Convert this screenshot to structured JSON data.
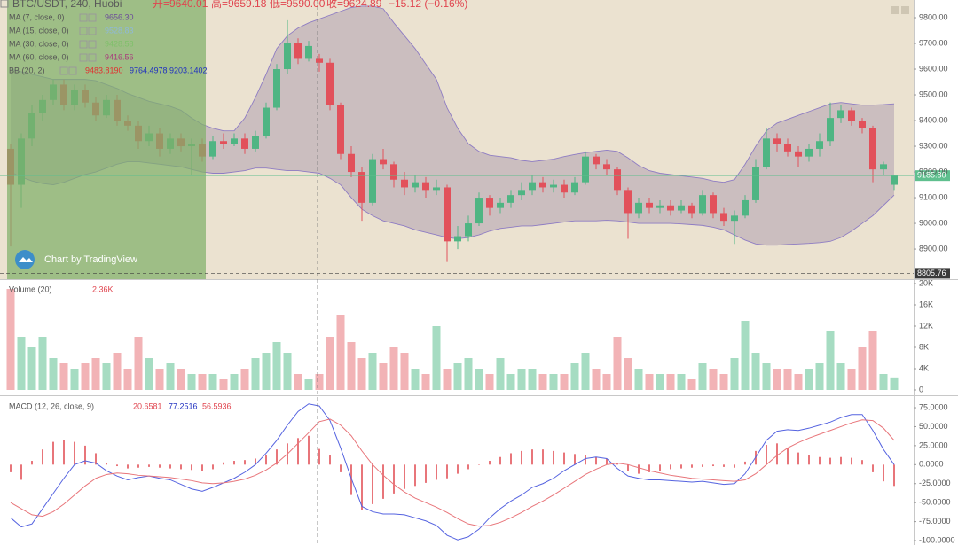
{
  "chart_data": [
    {
      "type": "candlestick",
      "title": "BTC/USDT, 240, Huobi",
      "ohlc_readout": [
        "开=9640.01",
        "高=9659.18",
        "低=9590.00",
        "收=9624.89",
        "−15.12 (−0.16%)"
      ],
      "readout_color": "#e0454f",
      "indicators": [
        {
          "name": "MA (7, close, 0)",
          "values": [
            "9656.30"
          ],
          "colors": [
            "#6b4a9a"
          ]
        },
        {
          "name": "MA (15, close, 0)",
          "values": [
            "9528.83"
          ],
          "colors": [
            "#8fb8d8"
          ]
        },
        {
          "name": "MA (30, close, 0)",
          "values": [
            "9428.58"
          ],
          "colors": [
            "#7fc06a"
          ]
        },
        {
          "name": "MA (60, close, 0)",
          "values": [
            "9416.56"
          ],
          "colors": [
            "#a83c7c"
          ]
        },
        {
          "name": "BB (20, 2)",
          "values": [
            "9483.8190",
            "9764.4978",
            "9203.1402"
          ],
          "colors": [
            "#e03030",
            "#2030c0",
            "#2030c0"
          ]
        }
      ],
      "watermark": "Chart by TradingView",
      "up_color": "#4fb583",
      "down_color": "#e2515b",
      "ohlc": [
        [
          9290,
          9310,
          8910,
          9150
        ],
        [
          9150,
          9350,
          9060,
          9330
        ],
        [
          9330,
          9460,
          9300,
          9430
        ],
        [
          9430,
          9500,
          9400,
          9480
        ],
        [
          9480,
          9560,
          9460,
          9540
        ],
        [
          9540,
          9560,
          9440,
          9460
        ],
        [
          9460,
          9540,
          9440,
          9520
        ],
        [
          9520,
          9540,
          9450,
          9470
        ],
        [
          9470,
          9490,
          9400,
          9420
        ],
        [
          9420,
          9500,
          9410,
          9480
        ],
        [
          9480,
          9500,
          9380,
          9400
        ],
        [
          9400,
          9420,
          9360,
          9380
        ],
        [
          9380,
          9400,
          9290,
          9320
        ],
        [
          9320,
          9380,
          9300,
          9350
        ],
        [
          9350,
          9370,
          9260,
          9290
        ],
        [
          9290,
          9350,
          9270,
          9330
        ],
        [
          9330,
          9350,
          9280,
          9300
        ],
        [
          9300,
          9330,
          9190,
          9310
        ],
        [
          9310,
          9330,
          9240,
          9260
        ],
        [
          9260,
          9340,
          9250,
          9320
        ],
        [
          9320,
          9350,
          9290,
          9310
        ],
        [
          9310,
          9350,
          9300,
          9330
        ],
        [
          9330,
          9350,
          9270,
          9290
        ],
        [
          9290,
          9360,
          9280,
          9340
        ],
        [
          9340,
          9470,
          9330,
          9450
        ],
        [
          9450,
          9620,
          9440,
          9600
        ],
        [
          9600,
          9790,
          9580,
          9700
        ],
        [
          9700,
          9720,
          9620,
          9640
        ],
        [
          9640,
          9710,
          9630,
          9690
        ],
        [
          9640.01,
          9659.18,
          9590.0,
          9624.89
        ],
        [
          9625,
          9640,
          9440,
          9460
        ],
        [
          9460,
          9470,
          9250,
          9270
        ],
        [
          9270,
          9300,
          9180,
          9200
        ],
        [
          9200,
          9220,
          9010,
          9080
        ],
        [
          9080,
          9270,
          9070,
          9250
        ],
        [
          9250,
          9290,
          9210,
          9230
        ],
        [
          9230,
          9240,
          9140,
          9170
        ],
        [
          9170,
          9200,
          9110,
          9140
        ],
        [
          9140,
          9190,
          9120,
          9160
        ],
        [
          9160,
          9180,
          9100,
          9130
        ],
        [
          9130,
          9170,
          9110,
          9140
        ],
        [
          9140,
          9150,
          8850,
          8930
        ],
        [
          8930,
          8990,
          8900,
          8950
        ],
        [
          8950,
          9030,
          8930,
          9000
        ],
        [
          9000,
          9120,
          8990,
          9100
        ],
        [
          9100,
          9110,
          9030,
          9060
        ],
        [
          9060,
          9100,
          9040,
          9080
        ],
        [
          9080,
          9130,
          9060,
          9110
        ],
        [
          9110,
          9160,
          9090,
          9130
        ],
        [
          9130,
          9190,
          9110,
          9160
        ],
        [
          9160,
          9180,
          9120,
          9140
        ],
        [
          9140,
          9170,
          9120,
          9150
        ],
        [
          9150,
          9170,
          9100,
          9120
        ],
        [
          9120,
          9180,
          9110,
          9160
        ],
        [
          9160,
          9280,
          9150,
          9260
        ],
        [
          9260,
          9270,
          9210,
          9230
        ],
        [
          9230,
          9250,
          9190,
          9210
        ],
        [
          9210,
          9220,
          9110,
          9130
        ],
        [
          9130,
          9140,
          8940,
          9040
        ],
        [
          9040,
          9100,
          9020,
          9080
        ],
        [
          9080,
          9100,
          9040,
          9060
        ],
        [
          9060,
          9090,
          9040,
          9070
        ],
        [
          9070,
          9090,
          9030,
          9050
        ],
        [
          9050,
          9090,
          9040,
          9070
        ],
        [
          9070,
          9080,
          9020,
          9040
        ],
        [
          9040,
          9130,
          9030,
          9110
        ],
        [
          9110,
          9120,
          9020,
          9040
        ],
        [
          9040,
          9060,
          8990,
          9010
        ],
        [
          9010,
          9050,
          8920,
          9030
        ],
        [
          9030,
          9110,
          9020,
          9090
        ],
        [
          9090,
          9250,
          9080,
          9220
        ],
        [
          9220,
          9370,
          9210,
          9330
        ],
        [
          9330,
          9350,
          9280,
          9310
        ],
        [
          9310,
          9330,
          9260,
          9280
        ],
        [
          9280,
          9300,
          9220,
          9260
        ],
        [
          9260,
          9310,
          9240,
          9290
        ],
        [
          9290,
          9350,
          9260,
          9320
        ],
        [
          9320,
          9470,
          9300,
          9410
        ],
        [
          9410,
          9460,
          9390,
          9440
        ],
        [
          9440,
          9450,
          9380,
          9400
        ],
        [
          9400,
          9410,
          9350,
          9370
        ],
        [
          9370,
          9380,
          9160,
          9210
        ],
        [
          9210,
          9240,
          9190,
          9230
        ],
        [
          9150,
          9190,
          9130,
          9185.8
        ]
      ],
      "bb": {
        "color": "#8e7cc3",
        "fill": "#9b8aa6",
        "upper": [
          9600,
          9590,
          9580,
          9570,
          9560,
          9560,
          9560,
          9560,
          9555,
          9540,
          9525,
          9505,
          9490,
          9475,
          9465,
          9455,
          9440,
          9410,
          9385,
          9370,
          9360,
          9360,
          9410,
          9490,
          9580,
          9680,
          9730,
          9760,
          9780,
          9795,
          9810,
          9825,
          9840,
          9845,
          9845,
          9835,
          9780,
          9730,
          9680,
          9620,
          9560,
          9450,
          9370,
          9310,
          9280,
          9265,
          9260,
          9255,
          9245,
          9240,
          9245,
          9250,
          9260,
          9268,
          9275,
          9280,
          9285,
          9280,
          9255,
          9225,
          9205,
          9195,
          9190,
          9185,
          9180,
          9175,
          9165,
          9160,
          9170,
          9230,
          9300,
          9360,
          9390,
          9405,
          9420,
          9435,
          9450,
          9465,
          9470,
          9465,
          9460,
          9460,
          9462,
          9465
        ],
        "lower": [
          9200,
          9180,
          9165,
          9155,
          9150,
          9160,
          9175,
          9190,
          9200,
          9215,
          9230,
          9240,
          9240,
          9235,
          9230,
          9225,
          9220,
          9210,
          9200,
          9195,
          9195,
          9200,
          9205,
          9215,
          9215,
          9210,
          9205,
          9205,
          9200,
          9195,
          9175,
          9150,
          9100,
          9055,
          9030,
          9010,
          9000,
          8990,
          8975,
          8965,
          8955,
          8945,
          8940,
          8945,
          8955,
          8970,
          8980,
          8985,
          8990,
          8990,
          8995,
          9000,
          9005,
          9010,
          9010,
          9010,
          9012,
          9010,
          9005,
          9000,
          9000,
          9000,
          9000,
          8998,
          8995,
          8992,
          8985,
          8975,
          8955,
          8935,
          8920,
          8915,
          8915,
          8918,
          8920,
          8922,
          8925,
          8930,
          8945,
          8970,
          9000,
          9030,
          9070,
          9110
        ]
      },
      "price_markers": [
        {
          "value": 9185.8,
          "label": "9185.80",
          "color": "#5fbf8e",
          "line_style": "solid"
        },
        {
          "value": 8805.76,
          "label": "8805.76",
          "color": "#3a3a3a",
          "line_style": "dashed"
        }
      ],
      "ylim": [
        8783,
        9869
      ],
      "yticks": [
        {
          "value": 9800,
          "label": "9800.00"
        },
        {
          "value": 9700,
          "label": "9700.00"
        },
        {
          "value": 9600,
          "label": "9600.00"
        },
        {
          "value": 9500,
          "label": "9500.00"
        },
        {
          "value": 9400,
          "label": "9400.00"
        },
        {
          "value": 9300,
          "label": "9300.00"
        },
        {
          "value": 9200,
          "label": "9200.00"
        },
        {
          "value": 9100,
          "label": "9100.00"
        },
        {
          "value": 9000,
          "label": "9000.00"
        },
        {
          "value": 8900,
          "label": "8900.00"
        }
      ]
    },
    {
      "type": "volume",
      "title": "Volume (20)",
      "value_label": "2.36K",
      "value_color": "#e0454f",
      "up_color": "#a6dcc2",
      "down_color": "#f2b3b6",
      "values": [
        19000,
        10000,
        8000,
        10000,
        6000,
        5000,
        4000,
        5000,
        6000,
        5000,
        7000,
        4000,
        10000,
        6000,
        4000,
        5000,
        4000,
        3000,
        3000,
        3000,
        2000,
        3000,
        4000,
        6000,
        7000,
        9000,
        7000,
        3000,
        2000,
        3000,
        10000,
        14000,
        9000,
        6000,
        7000,
        5000,
        8000,
        7000,
        4000,
        3000,
        12000,
        4000,
        5000,
        6000,
        4000,
        3000,
        6000,
        3000,
        4000,
        4000,
        3000,
        3000,
        3000,
        5000,
        7000,
        4000,
        3000,
        10000,
        6000,
        4000,
        3000,
        3000,
        3000,
        3000,
        2000,
        5000,
        4000,
        3000,
        6000,
        13000,
        7000,
        5000,
        4000,
        4000,
        3000,
        4000,
        5000,
        11000,
        5000,
        4000,
        8000,
        11000,
        3000,
        2360
      ],
      "ylim": [
        -1000,
        20667
      ],
      "yticks": [
        0,
        {
          "value": 4000,
          "label": "4K"
        },
        {
          "value": 8000,
          "label": "8K"
        },
        {
          "value": 12000,
          "label": "12K"
        },
        {
          "value": 16000,
          "label": "16K"
        },
        {
          "value": 20000,
          "label": "20K"
        }
      ]
    },
    {
      "type": "macd",
      "title": "MACD (12, 26, close, 9)",
      "readout": [
        "20.6581",
        "77.2516",
        "56.5936"
      ],
      "readout_colors": [
        "#e0454f",
        "#2030c0",
        "#e0454f"
      ],
      "series": [
        {
          "name": "MACD",
          "color": "#5563e0",
          "values": [
            -70,
            -82,
            -78,
            -58,
            -38,
            -18,
            0,
            5,
            2,
            -8,
            -15,
            -20,
            -17,
            -15,
            -18,
            -20,
            -26,
            -32,
            -35,
            -30,
            -24,
            -18,
            -10,
            0,
            15,
            32,
            52,
            70,
            80,
            77.2516,
            58,
            22,
            -18,
            -55,
            -62,
            -65,
            -65,
            -66,
            -70,
            -74,
            -80,
            -93,
            -99,
            -95,
            -85,
            -70,
            -58,
            -48,
            -40,
            -30,
            -25,
            -18,
            -8,
            0,
            8,
            10,
            8,
            -5,
            -15,
            -18,
            -20,
            -20,
            -21,
            -22,
            -23,
            -22,
            -24,
            -26,
            -25,
            -12,
            10,
            32,
            44,
            46,
            45,
            48,
            52,
            56,
            62,
            66,
            66,
            45,
            20,
            0
          ]
        },
        {
          "name": "Signal",
          "color": "#e8757a",
          "values": [
            -50,
            -58,
            -66,
            -68,
            -62,
            -52,
            -40,
            -28,
            -18,
            -13,
            -11,
            -12,
            -14,
            -15,
            -16,
            -17,
            -19,
            -21,
            -24,
            -25,
            -24,
            -22,
            -19,
            -14,
            -7,
            2,
            14,
            28,
            42,
            56.5936,
            60,
            52,
            38,
            18,
            0,
            -14,
            -26,
            -36,
            -44,
            -50,
            -56,
            -63,
            -71,
            -78,
            -81,
            -80,
            -76,
            -70,
            -63,
            -55,
            -48,
            -40,
            -31,
            -22,
            -13,
            -6,
            0,
            2,
            0,
            -4,
            -8,
            -11,
            -14,
            -16,
            -18,
            -19,
            -20,
            -21,
            -22,
            -20,
            -12,
            0,
            12,
            22,
            29,
            35,
            40,
            45,
            50,
            55,
            59,
            58,
            48,
            32
          ]
        }
      ],
      "histogram": {
        "color": "#e8757a",
        "values": [
          -10,
          -20,
          5,
          20,
          30,
          32,
          30,
          25,
          15,
          2,
          -2,
          -5,
          -4,
          -3,
          -4,
          -5,
          -6,
          -7,
          -8,
          -6,
          3,
          5,
          6,
          8,
          12,
          20,
          28,
          35,
          38,
          20.6581,
          12,
          -10,
          -40,
          -60,
          -52,
          -45,
          -38,
          -32,
          -28,
          -24,
          -20,
          -18,
          -12,
          -6,
          0,
          5,
          10,
          15,
          18,
          20,
          20,
          18,
          16,
          14,
          12,
          10,
          8,
          2,
          -8,
          -12,
          -10,
          -8,
          -6,
          -5,
          -4,
          -3,
          -2,
          -3,
          -4,
          4,
          18,
          26,
          28,
          22,
          16,
          12,
          10,
          9,
          10,
          9,
          6,
          -10,
          -22,
          -28
        ]
      },
      "ylim": [
        -105.8,
        90.2
      ],
      "yticks": [
        {
          "value": 75,
          "label": "75.0000"
        },
        {
          "value": 50,
          "label": "50.0000"
        },
        {
          "value": 25,
          "label": "25.0000"
        },
        {
          "value": 0,
          "label": "0.0000"
        },
        {
          "value": -25,
          "label": "-25.0000"
        },
        {
          "value": -50,
          "label": "-50.0000"
        },
        {
          "value": -75,
          "label": "-75.0000"
        },
        {
          "value": -100,
          "label": "-100.0000"
        }
      ]
    }
  ]
}
